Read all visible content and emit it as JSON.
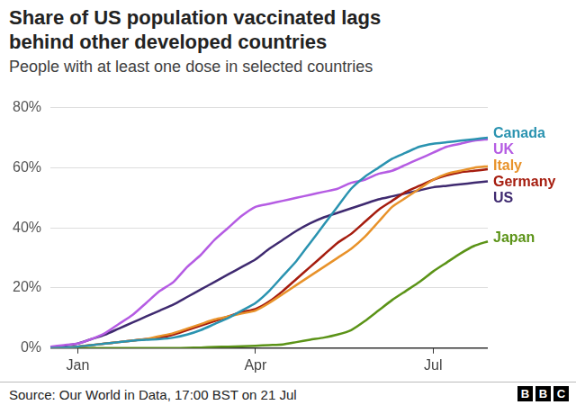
{
  "chart_data": {
    "type": "line",
    "title": "Share of US population vaccinated lags behind other developed countries",
    "subtitle": "People with at least one dose in selected countries",
    "source": "Source: Our World in Data, 17:00 BST on 21 Jul",
    "logo": "BBC",
    "categories": [
      null,
      null,
      "Jan",
      null,
      null,
      null,
      null,
      null,
      null,
      null,
      null,
      null,
      null,
      null,
      null,
      "Apr",
      null,
      null,
      null,
      null,
      null,
      null,
      null,
      null,
      null,
      null,
      null,
      null,
      "Jul",
      null,
      null,
      null,
      null
    ],
    "series": [
      {
        "name": "Canada",
        "color": "#2a93b0",
        "values": [
          0,
          0.2,
          0.5,
          1,
          1.5,
          2,
          2.5,
          2.8,
          3,
          3.5,
          4.5,
          6,
          8,
          10,
          12.5,
          15,
          19,
          24,
          29,
          35,
          41,
          47,
          53,
          57,
          60,
          63,
          65,
          67,
          68,
          68.5,
          69,
          69.5,
          70
        ]
      },
      {
        "name": "UK",
        "color": "#b55ce3",
        "values": [
          0.5,
          1,
          1.5,
          3,
          5,
          8,
          11,
          15,
          19,
          22,
          27,
          31,
          36,
          40,
          44,
          47,
          48,
          49,
          50,
          51,
          52,
          53,
          55,
          56,
          58,
          59,
          61,
          63,
          65,
          67,
          68,
          69,
          69.5
        ]
      },
      {
        "name": "Italy",
        "color": "#e8922a",
        "values": [
          0,
          0.1,
          0.5,
          1,
          1.5,
          2,
          2.5,
          3,
          4,
          5,
          6.5,
          8,
          9.5,
          10.5,
          11.5,
          12.5,
          15,
          18,
          21,
          24,
          27,
          30,
          33,
          37,
          42,
          47,
          50,
          53,
          56,
          58,
          59,
          60,
          60.5
        ]
      },
      {
        "name": "Germany",
        "color": "#a51c0e",
        "values": [
          0,
          0.1,
          0.5,
          1,
          1.5,
          2,
          2.5,
          3,
          3.5,
          4.5,
          6,
          7.5,
          9,
          10.5,
          12,
          13,
          15.5,
          19,
          23,
          27,
          31,
          35,
          38,
          42,
          46,
          49,
          52,
          54,
          56,
          57.5,
          58.5,
          59,
          59.5
        ]
      },
      {
        "name": "US",
        "color": "#3f2a70",
        "values": [
          0.3,
          0.8,
          1.5,
          3,
          4.5,
          6.5,
          8.5,
          10.5,
          12.5,
          14.5,
          17,
          19.5,
          22,
          24.5,
          27,
          29.5,
          33,
          36,
          39,
          41.5,
          43.5,
          45,
          46.5,
          48,
          49.5,
          50.5,
          51.5,
          52.5,
          53.5,
          54,
          54.5,
          55,
          55.5
        ]
      },
      {
        "name": "Japan",
        "color": "#5b9317",
        "values": [
          0,
          0,
          0,
          0,
          0,
          0,
          0,
          0,
          0,
          0,
          0.1,
          0.2,
          0.4,
          0.5,
          0.6,
          0.8,
          1,
          1.2,
          2,
          2.8,
          3.5,
          4.5,
          6,
          9,
          12.5,
          16,
          19,
          22,
          25.5,
          28.5,
          31.5,
          34,
          35.5
        ]
      }
    ],
    "ylim": [
      0,
      80
    ],
    "yticks": [
      {
        "value": 0,
        "label": "0%"
      },
      {
        "value": 20,
        "label": "20%"
      },
      {
        "value": 40,
        "label": "40%"
      },
      {
        "value": 60,
        "label": "60%"
      },
      {
        "value": 80,
        "label": "80%"
      }
    ],
    "grid": true
  }
}
